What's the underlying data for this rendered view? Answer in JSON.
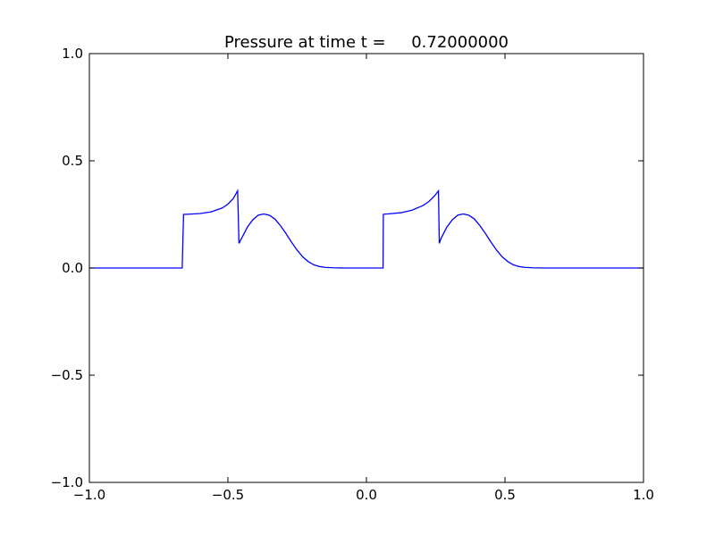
{
  "chart_data": {
    "type": "line",
    "title": "Pressure at time t =     0.72000000",
    "xlabel": "",
    "ylabel": "",
    "xlim": [
      -1.0,
      1.0
    ],
    "ylim": [
      -1.0,
      1.0
    ],
    "xticks": [
      {
        "value": -1.0,
        "label": "−1.0"
      },
      {
        "value": -0.5,
        "label": "−0.5"
      },
      {
        "value": 0.0,
        "label": "0.0"
      },
      {
        "value": 0.5,
        "label": "0.5"
      },
      {
        "value": 1.0,
        "label": "1.0"
      }
    ],
    "yticks": [
      {
        "value": -1.0,
        "label": "−1.0"
      },
      {
        "value": -0.5,
        "label": "−0.5"
      },
      {
        "value": 0.0,
        "label": "0.0"
      },
      {
        "value": 0.5,
        "label": "0.5"
      },
      {
        "value": 1.0,
        "label": "1.0"
      }
    ],
    "grid": false,
    "legend": "none",
    "series": [
      {
        "color": "#0000ff",
        "x": [
          -1.0,
          -0.665,
          -0.66,
          -0.64,
          -0.6,
          -0.56,
          -0.52,
          -0.5,
          -0.48,
          -0.465,
          -0.46,
          -0.45,
          -0.43,
          -0.41,
          -0.39,
          -0.37,
          -0.35,
          -0.33,
          -0.31,
          -0.29,
          -0.27,
          -0.25,
          -0.23,
          -0.21,
          -0.19,
          -0.17,
          -0.15,
          -0.12,
          -0.08,
          0.06,
          0.061,
          0.065,
          0.085,
          0.125,
          0.165,
          0.205,
          0.225,
          0.245,
          0.26,
          0.263,
          0.27,
          0.29,
          0.31,
          0.33,
          0.35,
          0.37,
          0.39,
          0.41,
          0.43,
          0.45,
          0.47,
          0.49,
          0.51,
          0.53,
          0.55,
          0.57,
          0.6,
          0.64,
          1.0
        ],
        "y": [
          0.0,
          0.0,
          0.25,
          0.251,
          0.254,
          0.262,
          0.28,
          0.298,
          0.325,
          0.36,
          0.115,
          0.14,
          0.19,
          0.225,
          0.247,
          0.252,
          0.246,
          0.228,
          0.197,
          0.16,
          0.12,
          0.083,
          0.052,
          0.03,
          0.015,
          0.007,
          0.003,
          0.001,
          0.0,
          0.0,
          0.25,
          0.251,
          0.253,
          0.258,
          0.27,
          0.292,
          0.31,
          0.335,
          0.36,
          0.115,
          0.14,
          0.19,
          0.225,
          0.247,
          0.252,
          0.246,
          0.228,
          0.197,
          0.16,
          0.12,
          0.083,
          0.052,
          0.03,
          0.015,
          0.007,
          0.003,
          0.001,
          0.0,
          0.0
        ]
      }
    ]
  }
}
